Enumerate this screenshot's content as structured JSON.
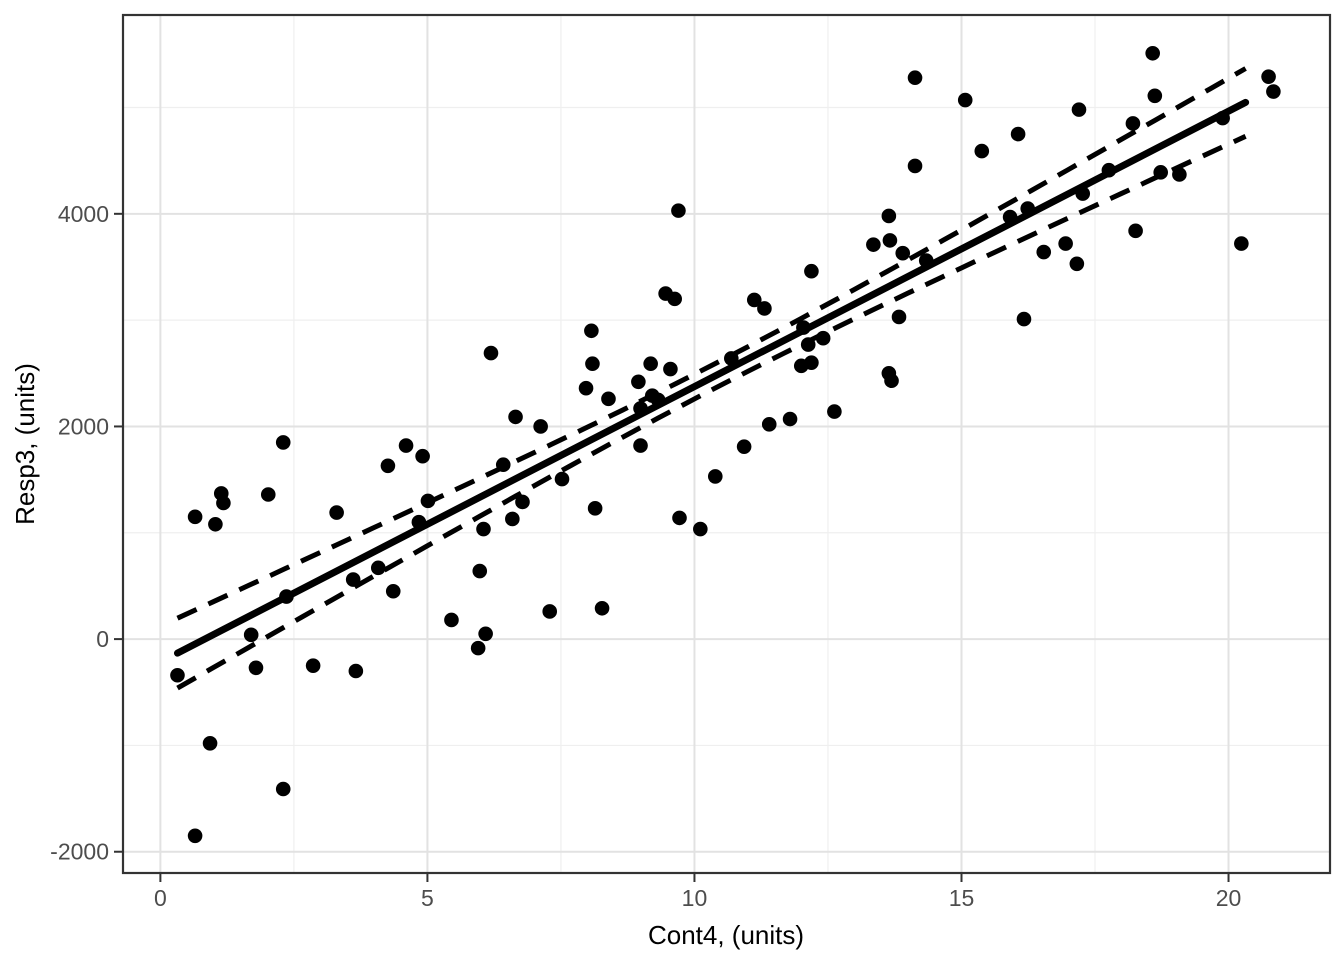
{
  "figure": {
    "x_axis_title": "Cont4, (units)",
    "y_axis_title": "Resp3, (units)"
  },
  "chart_data": {
    "type": "scatter",
    "title": "",
    "xlabel": "Cont4, (units)",
    "ylabel": "Resp3, (units)",
    "grid": true,
    "legend": "none",
    "x_domain": [
      -0.7,
      21.9
    ],
    "y_domain": [
      -2200,
      5870
    ],
    "x_ticks": [
      0,
      5,
      10,
      15,
      20
    ],
    "y_ticks": [
      -2000,
      0,
      2000,
      4000
    ],
    "x_minor_gridlines": [
      2.5,
      7.5,
      12.5,
      17.5
    ],
    "y_minor_gridlines": [
      -1000,
      1000,
      3000,
      5000
    ],
    "points": [
      [
        0.32,
        -340
      ],
      [
        0.65,
        -1850
      ],
      [
        0.65,
        1150
      ],
      [
        0.93,
        -980
      ],
      [
        1.03,
        1080
      ],
      [
        1.14,
        1370
      ],
      [
        1.18,
        1280
      ],
      [
        1.7,
        40
      ],
      [
        1.79,
        -270
      ],
      [
        2.02,
        1360
      ],
      [
        2.3,
        1850
      ],
      [
        2.3,
        -1410
      ],
      [
        2.36,
        400
      ],
      [
        2.86,
        -250
      ],
      [
        3.3,
        1190
      ],
      [
        3.61,
        560
      ],
      [
        3.66,
        -300
      ],
      [
        4.08,
        670
      ],
      [
        4.26,
        1630
      ],
      [
        4.36,
        450
      ],
      [
        4.6,
        1820
      ],
      [
        4.84,
        1100
      ],
      [
        4.91,
        1720
      ],
      [
        5.01,
        1300
      ],
      [
        5.45,
        180
      ],
      [
        5.98,
        640
      ],
      [
        5.95,
        -85
      ],
      [
        6.09,
        50
      ],
      [
        6.05,
        1035
      ],
      [
        6.19,
        2690
      ],
      [
        6.42,
        1640
      ],
      [
        6.59,
        1130
      ],
      [
        6.65,
        2090
      ],
      [
        6.78,
        1290
      ],
      [
        7.12,
        2000
      ],
      [
        7.29,
        260
      ],
      [
        7.52,
        1505
      ],
      [
        7.97,
        2360
      ],
      [
        8.07,
        2900
      ],
      [
        8.09,
        2590
      ],
      [
        8.14,
        1230
      ],
      [
        8.27,
        290
      ],
      [
        8.39,
        2260
      ],
      [
        8.95,
        2420
      ],
      [
        8.99,
        2170
      ],
      [
        8.99,
        1820
      ],
      [
        9.18,
        2590
      ],
      [
        9.21,
        2290
      ],
      [
        9.32,
        2250
      ],
      [
        9.46,
        3250
      ],
      [
        9.55,
        2540
      ],
      [
        9.63,
        3200
      ],
      [
        9.7,
        4030
      ],
      [
        9.72,
        1140
      ],
      [
        10.11,
        1035
      ],
      [
        10.39,
        1530
      ],
      [
        10.69,
        2640
      ],
      [
        10.93,
        1810
      ],
      [
        11.12,
        3190
      ],
      [
        11.31,
        3110
      ],
      [
        11.4,
        2020
      ],
      [
        11.79,
        2070
      ],
      [
        12.0,
        2570
      ],
      [
        12.04,
        2930
      ],
      [
        12.13,
        2770
      ],
      [
        12.19,
        3460
      ],
      [
        12.19,
        2600
      ],
      [
        12.41,
        2830
      ],
      [
        12.62,
        2140
      ],
      [
        13.35,
        3710
      ],
      [
        13.64,
        3980
      ],
      [
        13.64,
        2500
      ],
      [
        13.66,
        3750
      ],
      [
        13.69,
        2430
      ],
      [
        13.83,
        3030
      ],
      [
        13.9,
        3630
      ],
      [
        14.13,
        5280
      ],
      [
        14.13,
        4450
      ],
      [
        14.34,
        3560
      ],
      [
        15.07,
        5070
      ],
      [
        15.38,
        4590
      ],
      [
        15.91,
        3970
      ],
      [
        16.06,
        4750
      ],
      [
        16.17,
        3010
      ],
      [
        16.24,
        4050
      ],
      [
        16.54,
        3640
      ],
      [
        16.95,
        3720
      ],
      [
        17.16,
        3530
      ],
      [
        17.2,
        4980
      ],
      [
        17.27,
        4190
      ],
      [
        17.76,
        4410
      ],
      [
        18.21,
        4850
      ],
      [
        18.26,
        3840
      ],
      [
        18.58,
        5510
      ],
      [
        18.62,
        5110
      ],
      [
        18.73,
        4390
      ],
      [
        19.08,
        4370
      ],
      [
        19.89,
        4900
      ],
      [
        20.24,
        3720
      ],
      [
        20.75,
        5290
      ],
      [
        20.84,
        5150
      ]
    ],
    "regression_line": {
      "style": "solid",
      "slope": 259,
      "intercept": -215,
      "x_start": 0.32,
      "x_end": 20.32
    },
    "confidence_band": {
      "style": "dashed",
      "half_width_min": 115,
      "x_center": 10.5,
      "spread": 3.8,
      "x_start": 0.32,
      "x_end": 20.32
    },
    "colors": {
      "point": "#000000",
      "line": "#000000",
      "band": "#000000",
      "grid_major": "#e2e2e2",
      "grid_minor": "#efefef",
      "panel_border": "#333333",
      "tick_mark": "#333333",
      "tick_label": "#4d4d4d",
      "axis_title": "#000000",
      "background": "#ffffff"
    }
  }
}
